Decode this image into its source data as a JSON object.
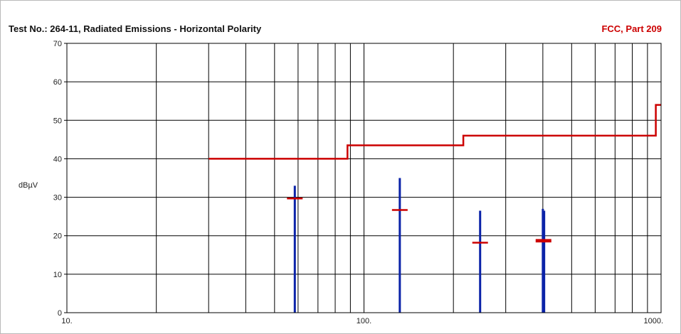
{
  "chart_data": {
    "type": "line",
    "title": "Test No.: 264-11, Radiated Emissions - Horizontal Polarity",
    "standard_label": "FCC, Part 209",
    "ylabel": "dBµV",
    "xlabel": "",
    "x_scale": "log",
    "xlim": [
      10,
      1000
    ],
    "ylim": [
      0,
      70
    ],
    "grid": true,
    "x_tick_labels": [
      {
        "value": 10,
        "label": "10."
      },
      {
        "value": 100,
        "label": "100."
      },
      {
        "value": 1000,
        "label": "1000."
      }
    ],
    "y_ticks": [
      0,
      10,
      20,
      30,
      40,
      50,
      60,
      70
    ],
    "limit_line": {
      "color": "#cc0000",
      "points": [
        [
          30,
          40
        ],
        [
          88,
          40
        ],
        [
          88,
          43.5
        ],
        [
          216,
          43.5
        ],
        [
          216,
          46
        ],
        [
          960,
          46
        ],
        [
          960,
          54
        ],
        [
          1000,
          54
        ]
      ]
    },
    "peaks": {
      "color": "#0a22a8",
      "values": [
        {
          "x": 58.5,
          "y": 33
        },
        {
          "x": 132,
          "y": 35
        },
        {
          "x": 246,
          "y": 26.5
        },
        {
          "x": 400,
          "y": 27
        },
        {
          "x": 404,
          "y": 26.5
        }
      ]
    },
    "quasi_peak_markers": {
      "color": "#cc0000",
      "values": [
        {
          "x": 58.5,
          "y": 29.7
        },
        {
          "x": 132,
          "y": 26.7
        },
        {
          "x": 246,
          "y": 18.2
        },
        {
          "x": 402,
          "y": 18.9
        },
        {
          "x": 402,
          "y": 18.5
        }
      ]
    }
  }
}
